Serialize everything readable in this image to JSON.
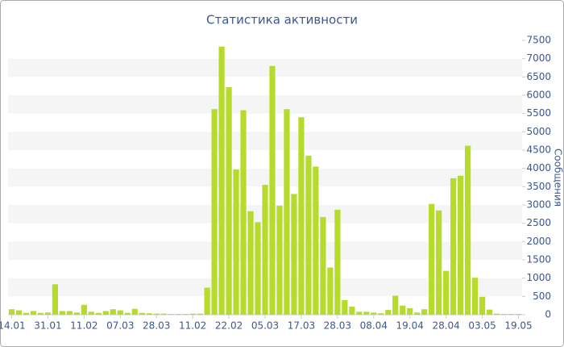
{
  "chart_data": {
    "type": "bar",
    "title": "Статистика активности",
    "y_label": "Сообщения",
    "categories": [
      "14.01",
      null,
      null,
      null,
      null,
      "31.01",
      null,
      null,
      null,
      null,
      "11.02",
      null,
      null,
      null,
      null,
      "07.03",
      null,
      null,
      null,
      null,
      "28.03",
      null,
      null,
      null,
      null,
      "11.02",
      null,
      null,
      null,
      null,
      "22.02",
      null,
      null,
      null,
      null,
      "05.03",
      null,
      null,
      null,
      null,
      "17.03",
      null,
      null,
      null,
      null,
      "28.03",
      null,
      null,
      null,
      null,
      "08.04",
      null,
      null,
      null,
      null,
      "19.04",
      null,
      null,
      null,
      null,
      "28.04",
      null,
      null,
      null,
      null,
      "03.05",
      null,
      null,
      null,
      null,
      "19.05"
    ],
    "values": [
      150,
      120,
      50,
      100,
      50,
      60,
      830,
      100,
      100,
      60,
      270,
      80,
      50,
      100,
      150,
      120,
      50,
      160,
      50,
      40,
      30,
      30,
      20,
      20,
      20,
      30,
      30,
      740,
      5620,
      7330,
      6220,
      3970,
      5590,
      2830,
      2530,
      3550,
      6800,
      2980,
      5620,
      3300,
      5400,
      4350,
      4050,
      2670,
      1290,
      2870,
      400,
      220,
      80,
      80,
      60,
      40,
      130,
      520,
      250,
      180,
      60,
      150,
      3030,
      2850,
      1200,
      3730,
      3800,
      4620,
      1010,
      490,
      140,
      30,
      20,
      20,
      20
    ],
    "color": "#b6db2c",
    "ylim": [
      0,
      7500
    ],
    "yticks": [
      0,
      500,
      1000,
      1500,
      2000,
      2500,
      3000,
      3500,
      4000,
      4500,
      5000,
      5500,
      6000,
      6500,
      7000,
      7500
    ],
    "grid": true
  }
}
